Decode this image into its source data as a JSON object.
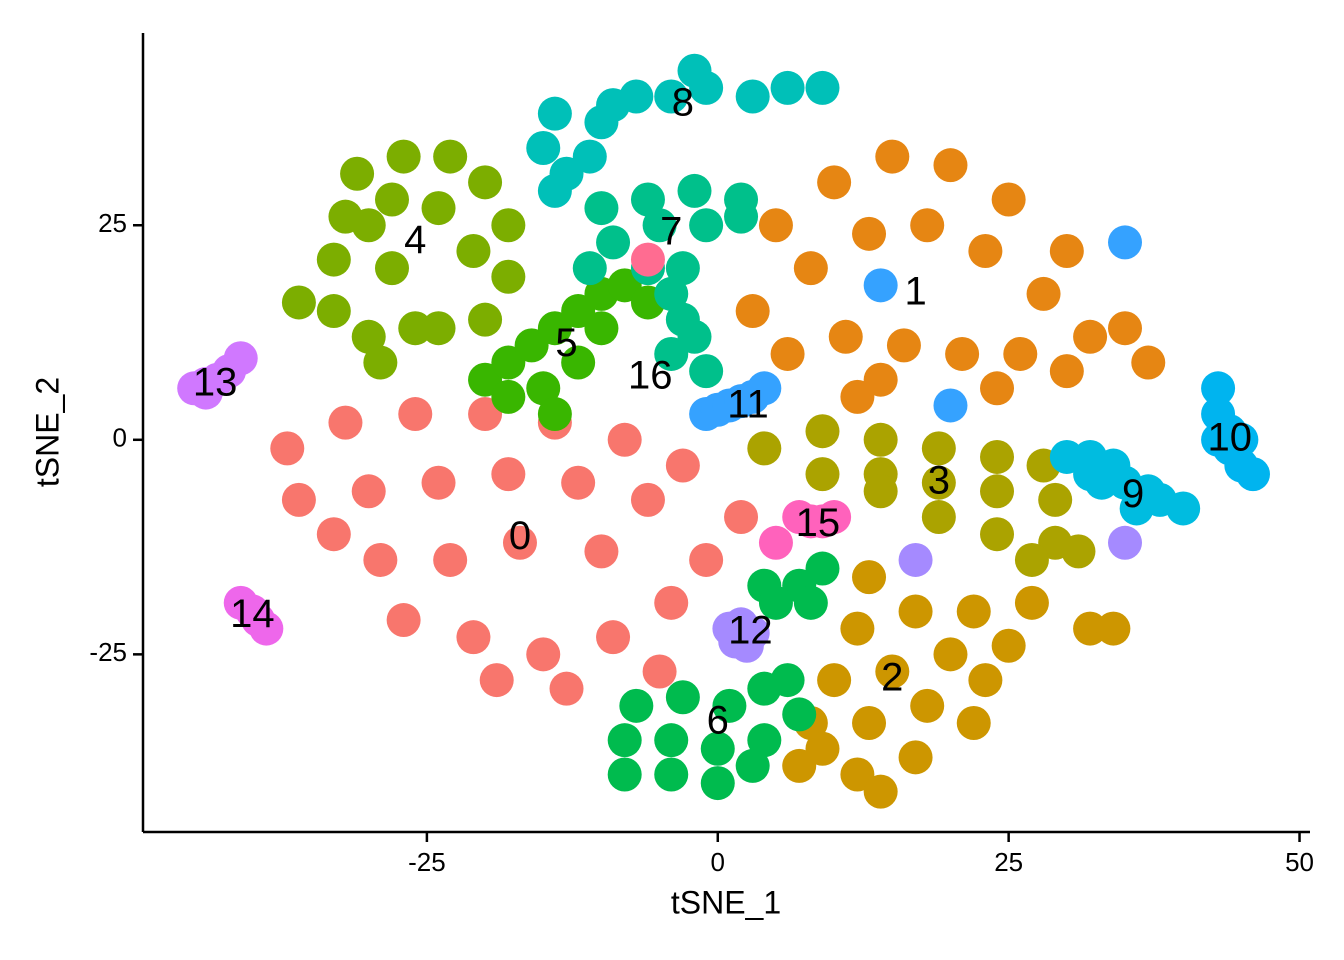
{
  "chart_data": {
    "type": "scatter",
    "xlabel": "tSNE_1",
    "ylabel": "tSNE_2",
    "xlim": [
      -49.4,
      50.9
    ],
    "ylim": [
      -45.7,
      47.4
    ],
    "xticks": [
      -25,
      0,
      25,
      50
    ],
    "yticks": [
      -25,
      0,
      25
    ],
    "series": [
      {
        "name": "0",
        "color": "#F8766D",
        "label_x": -17,
        "label_y": -11.5,
        "x": [
          -37,
          -32,
          -26,
          -20,
          -14,
          -8,
          -3,
          2,
          -36,
          -30,
          -24,
          -18,
          -12,
          -6,
          -1,
          -29,
          -23,
          -17,
          -10,
          -4,
          -27,
          -21,
          -15,
          -9,
          -5,
          -13,
          -19,
          -33
        ],
        "y": [
          -1,
          2,
          3,
          3,
          2,
          0,
          -3,
          -9,
          -7,
          -6,
          -5,
          -4,
          -5,
          -7,
          -14,
          -14,
          -14,
          -12,
          -13,
          -19,
          -21,
          -23,
          -25,
          -23,
          -27,
          -29,
          -28,
          -11
        ]
      },
      {
        "name": "1",
        "color": "#E68613",
        "label_x": 17,
        "label_y": 17,
        "x": [
          5,
          10,
          15,
          20,
          25,
          30,
          35,
          37,
          3,
          8,
          13,
          18,
          23,
          28,
          32,
          6,
          11,
          16,
          21,
          26,
          30,
          14,
          24,
          12
        ],
        "y": [
          25,
          30,
          33,
          32,
          28,
          22,
          13,
          9,
          15,
          20,
          24,
          25,
          22,
          17,
          12,
          10,
          12,
          11,
          10,
          10,
          8,
          7,
          6,
          5
        ]
      },
      {
        "name": "2",
        "color": "#CD9600",
        "label_x": 15,
        "label_y": -28,
        "x": [
          13,
          12,
          17,
          22,
          27,
          32,
          34,
          10,
          15,
          20,
          25,
          8,
          13,
          18,
          23,
          7,
          12,
          17,
          22,
          14,
          9
        ],
        "y": [
          -16,
          -22,
          -20,
          -20,
          -19,
          -22,
          -22,
          -28,
          -27,
          -25,
          -24,
          -33,
          -33,
          -31,
          -28,
          -38,
          -39,
          -37,
          -33,
          -41,
          -36
        ]
      },
      {
        "name": "3",
        "color": "#ABA300",
        "label_x": 19,
        "label_y": -5,
        "x": [
          4,
          9,
          14,
          19,
          24,
          28,
          9,
          14,
          19,
          24,
          29,
          19,
          24,
          29,
          31,
          27,
          14
        ],
        "y": [
          -1,
          1,
          0,
          -1,
          -2,
          -3,
          -4,
          -4,
          -5,
          -6,
          -7,
          -9,
          -11,
          -12,
          -13,
          -14,
          -6
        ]
      },
      {
        "name": "4",
        "color": "#7CAE00",
        "label_x": -26,
        "label_y": 23,
        "x": [
          -31,
          -27,
          -23,
          -20,
          -18,
          -18,
          -20,
          -26,
          -33,
          -36,
          -33,
          -30,
          -28,
          -24,
          -21,
          -28,
          -32,
          -30,
          -24,
          -29
        ],
        "y": [
          31,
          33,
          33,
          30,
          25,
          19,
          14,
          13,
          15,
          16,
          21,
          25,
          28,
          27,
          22,
          20,
          26,
          12,
          13,
          9
        ]
      },
      {
        "name": "5",
        "color": "#39B600",
        "label_x": -13,
        "label_y": 11,
        "x": [
          -20,
          -18,
          -16,
          -14,
          -12,
          -10,
          -8,
          -10,
          -12,
          -15,
          -18,
          -14,
          -6
        ],
        "y": [
          7,
          9,
          11,
          13,
          15,
          17,
          18,
          13,
          9,
          6,
          5,
          3,
          16
        ]
      },
      {
        "name": "6",
        "color": "#00BB4E",
        "label_x": 0,
        "label_y": -33,
        "x": [
          -7,
          -3,
          1,
          4,
          6,
          -8,
          -4,
          0,
          4,
          -8,
          -4,
          0,
          3,
          7,
          4,
          7,
          9,
          5,
          8
        ],
        "y": [
          -31,
          -30,
          -31,
          -29,
          -28,
          -35,
          -35,
          -36,
          -35,
          -39,
          -39,
          -40,
          -38,
          -32,
          -17,
          -17,
          -15,
          -19,
          -19
        ]
      },
      {
        "name": "7",
        "color": "#00C08B",
        "label_x": -4,
        "label_y": 24,
        "x": [
          -10,
          -6,
          -2,
          2,
          -9,
          -5,
          -1,
          2,
          -6,
          -4,
          -3,
          -4,
          -1,
          -2,
          -3,
          -11
        ],
        "y": [
          27,
          28,
          29,
          28,
          23,
          25,
          25,
          26,
          20,
          17,
          14,
          10,
          8,
          12,
          20,
          20
        ]
      },
      {
        "name": "8",
        "color": "#00C0B8",
        "label_x": -3,
        "label_y": 39,
        "x": [
          3,
          6,
          9,
          -1,
          -4,
          -7,
          -9,
          -10,
          -11,
          -13,
          -14,
          -15,
          -14,
          -2
        ],
        "y": [
          40,
          41,
          41,
          41,
          40,
          40,
          39,
          37,
          33,
          31,
          29,
          34,
          38,
          43
        ]
      },
      {
        "name": "9",
        "color": "#00BCE0",
        "label_x": 35.7,
        "label_y": -6.6,
        "x": [
          30,
          32,
          34,
          35,
          37,
          38,
          40,
          36,
          33,
          32
        ],
        "y": [
          -2,
          -2,
          -3,
          -5,
          -6,
          -7,
          -8,
          -8,
          -5,
          -4
        ]
      },
      {
        "name": "10",
        "color": "#00B4EF",
        "label_x": 44,
        "label_y": 0,
        "x": [
          43,
          43,
          44,
          44,
          45,
          46,
          43,
          45
        ],
        "y": [
          6,
          3,
          1,
          -1,
          -3,
          -4,
          0,
          0
        ]
      },
      {
        "name": "11",
        "color": "#35A2FF",
        "label_x": 2.6,
        "label_y": 3.8,
        "x": [
          -1,
          0,
          1,
          2,
          3,
          4,
          20,
          35,
          14
        ],
        "y": [
          3,
          3.5,
          4,
          4.5,
          5,
          6,
          4,
          23,
          18
        ]
      },
      {
        "name": "12",
        "color": "#A58AFF",
        "label_x": 2.8,
        "label_y": -22.5,
        "x": [
          1,
          2,
          3,
          1.5,
          2.5,
          17,
          35
        ],
        "y": [
          -22,
          -21.5,
          -22.5,
          -23.5,
          -24,
          -14,
          -12
        ]
      },
      {
        "name": "13",
        "color": "#D078FF",
        "label_x": -43.2,
        "label_y": 6.4,
        "x": [
          -45,
          -44,
          -43,
          -42,
          -41,
          -44
        ],
        "y": [
          6,
          6.5,
          7,
          8,
          9.5,
          5.5
        ]
      },
      {
        "name": "14",
        "color": "#EE67EB",
        "label_x": -40,
        "label_y": -20.6,
        "x": [
          -41,
          -40,
          -39.5,
          -38.8
        ],
        "y": [
          -19,
          -20,
          -21,
          -22
        ]
      },
      {
        "name": "15",
        "color": "#FF62BC",
        "label_x": 8.6,
        "label_y": -10,
        "x": [
          7,
          8,
          9,
          10,
          5
        ],
        "y": [
          -9,
          -9.5,
          -9.5,
          -9,
          -12
        ]
      },
      {
        "name": "16",
        "color": "#FF6C91",
        "label_x": -5.8,
        "label_y": 7.2,
        "x": [
          -6
        ],
        "y": [
          21
        ]
      }
    ]
  }
}
